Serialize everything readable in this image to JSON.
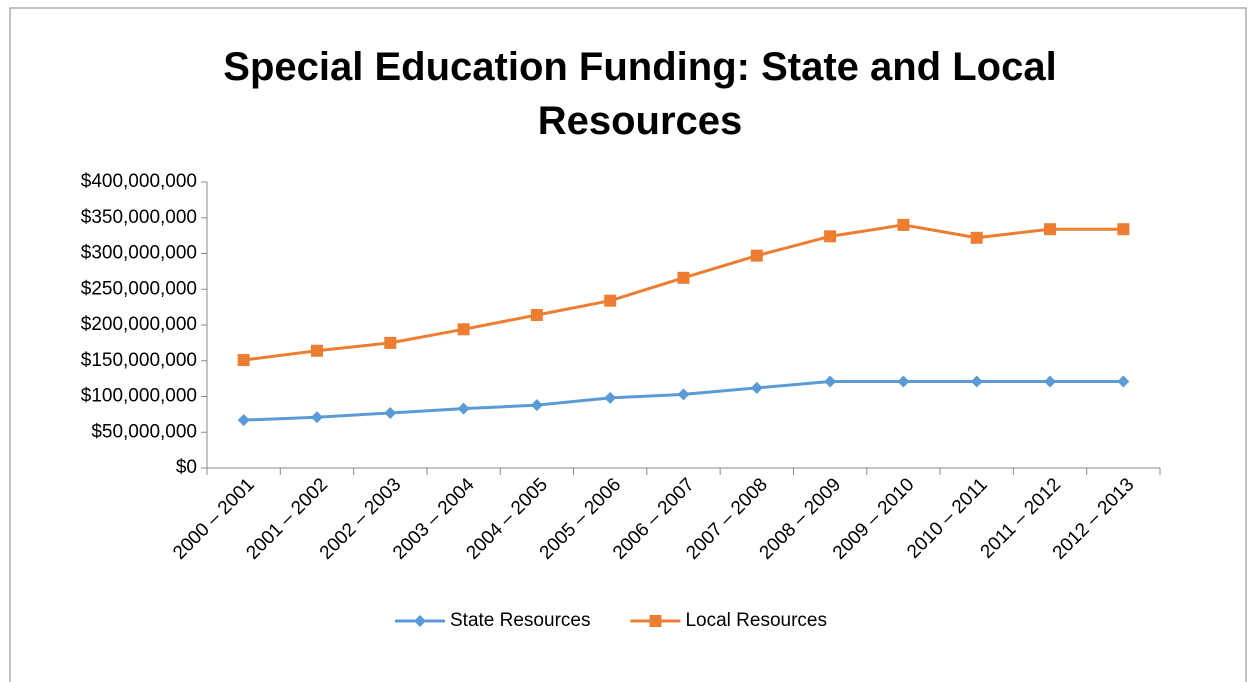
{
  "chart_data": {
    "type": "line",
    "title": "Special Education Funding: State and Local Resources",
    "categories": [
      "2000 – 2001",
      "2001 – 2002",
      "2002 – 2003",
      "2003 – 2004",
      "2004 – 2005",
      "2005 – 2006",
      "2006 – 2007",
      "2007 – 2008",
      "2008 – 2009",
      "2009 – 2010",
      "2010 – 2011",
      "2011 – 2012",
      "2012 – 2013"
    ],
    "series": [
      {
        "name": "State Resources",
        "color": "#5b9bd5",
        "marker": "diamond",
        "values": [
          67000000,
          71000000,
          77000000,
          83000000,
          88000000,
          98000000,
          103000000,
          112000000,
          121000000,
          121000000,
          121000000,
          121000000,
          121000000
        ]
      },
      {
        "name": "Local Resources",
        "color": "#ed7d31",
        "marker": "square",
        "values": [
          151000000,
          164000000,
          175000000,
          194000000,
          214000000,
          234000000,
          266000000,
          297000000,
          324000000,
          340000000,
          322000000,
          334000000,
          334000000
        ]
      }
    ],
    "ylim": [
      0,
      400000000
    ],
    "yticks": [
      {
        "value": 0,
        "label": "$0"
      },
      {
        "value": 50000000,
        "label": "$50,000,000"
      },
      {
        "value": 100000000,
        "label": "$100,000,000"
      },
      {
        "value": 150000000,
        "label": "$150,000,000"
      },
      {
        "value": 200000000,
        "label": "$200,000,000"
      },
      {
        "value": 250000000,
        "label": "$250,000,000"
      },
      {
        "value": 300000000,
        "label": "$300,000,000"
      },
      {
        "value": 350000000,
        "label": "$350,000,000"
      },
      {
        "value": 400000000,
        "label": "$400,000,000"
      }
    ],
    "grid": false,
    "legend": "bottom"
  }
}
